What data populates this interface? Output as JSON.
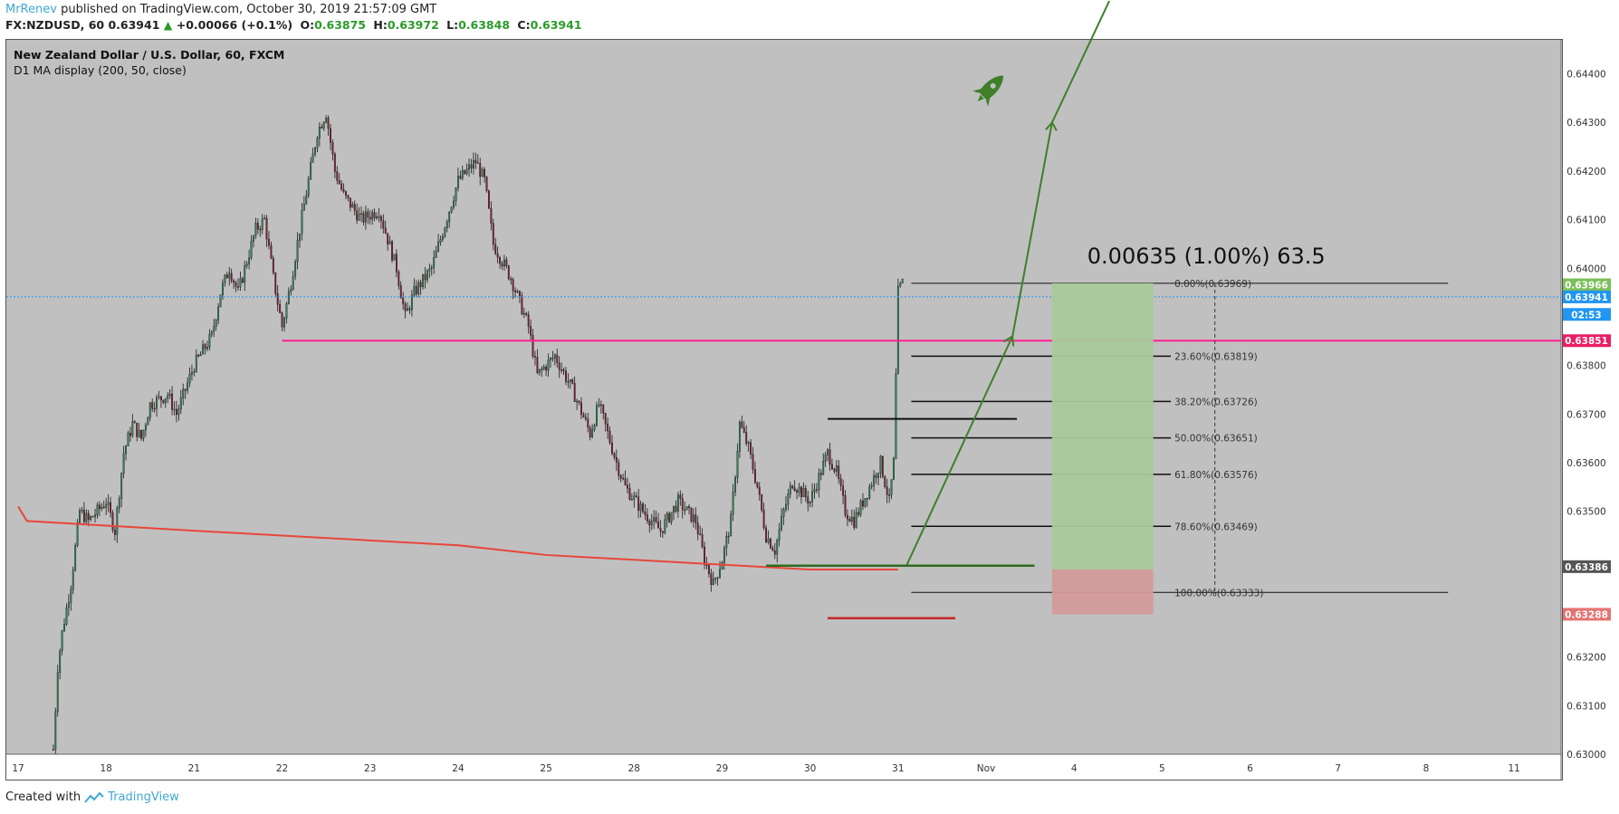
{
  "header": {
    "author": "MrRenev",
    "published": "published on TradingView.com, October 30, 2019 21:57:09 GMT",
    "symbol": "FX:NZDUSD, 60",
    "last": "0.63941",
    "change": "+0.00066 (+0.1%)",
    "o_label": "O:",
    "o": "0.63875",
    "h_label": "H:",
    "h": "0.63972",
    "l_label": "L:",
    "l": "0.63848",
    "c_label": "C:",
    "c": "0.63941"
  },
  "legend": {
    "title": "New Zealand Dollar / U.S. Dollar, 60, FXCM",
    "indicator": "D1 MA display (200, 50, close)"
  },
  "footer": {
    "created": "Created with",
    "brand": "TradingView"
  },
  "colors": {
    "background": "#c0c0c0",
    "up": "#2e8b57",
    "down": "#8b1a3a",
    "support": "#ff1f8f",
    "ma": "#e8463a",
    "arrow": "#3f7f2a",
    "tp_zone": "#a8c99a",
    "sl_zone": "#d49a9a"
  },
  "chart_data": {
    "type": "candlestick",
    "title": "New Zealand Dollar / U.S. Dollar, 60, FXCM",
    "ylim": [
      0.63,
      0.6447
    ],
    "y_ticks": [
      "0.64400",
      "0.64300",
      "0.64200",
      "0.64100",
      "0.64000",
      "0.63800",
      "0.63700",
      "0.63600",
      "0.63500",
      "0.63200",
      "0.63100",
      "0.63000"
    ],
    "x_ticks": [
      "17",
      "18",
      "21",
      "22",
      "23",
      "24",
      "25",
      "28",
      "29",
      "30",
      "31",
      "Nov",
      "4",
      "5",
      "6",
      "7",
      "8",
      "11"
    ],
    "x_range_bars": [
      0,
      348
    ],
    "close_path": [
      [
        8,
        0.6301
      ],
      [
        9,
        0.6318
      ],
      [
        10,
        0.6325
      ],
      [
        12,
        0.6335
      ],
      [
        14,
        0.635
      ],
      [
        16,
        0.6348
      ],
      [
        20,
        0.6352
      ],
      [
        22,
        0.6346
      ],
      [
        24,
        0.6362
      ],
      [
        26,
        0.6368
      ],
      [
        28,
        0.6365
      ],
      [
        30,
        0.6372
      ],
      [
        34,
        0.6374
      ],
      [
        36,
        0.637
      ],
      [
        40,
        0.638
      ],
      [
        44,
        0.6386
      ],
      [
        46,
        0.6395
      ],
      [
        48,
        0.64
      ],
      [
        50,
        0.6395
      ],
      [
        54,
        0.6408
      ],
      [
        56,
        0.641
      ],
      [
        58,
        0.6398
      ],
      [
        60,
        0.6388
      ],
      [
        62,
        0.6397
      ],
      [
        64,
        0.6408
      ],
      [
        66,
        0.6418
      ],
      [
        68,
        0.6428
      ],
      [
        70,
        0.6432
      ],
      [
        72,
        0.642
      ],
      [
        74,
        0.6415
      ],
      [
        78,
        0.641
      ],
      [
        82,
        0.6412
      ],
      [
        86,
        0.64
      ],
      [
        88,
        0.639
      ],
      [
        90,
        0.6395
      ],
      [
        94,
        0.64
      ],
      [
        98,
        0.6412
      ],
      [
        100,
        0.6418
      ],
      [
        104,
        0.6422
      ],
      [
        106,
        0.6418
      ],
      [
        108,
        0.6405
      ],
      [
        112,
        0.6398
      ],
      [
        116,
        0.6388
      ],
      [
        118,
        0.6378
      ],
      [
        122,
        0.6382
      ],
      [
        126,
        0.6375
      ],
      [
        130,
        0.6366
      ],
      [
        132,
        0.6372
      ],
      [
        136,
        0.636
      ],
      [
        138,
        0.6355
      ],
      [
        142,
        0.635
      ],
      [
        146,
        0.6346
      ],
      [
        150,
        0.6352
      ],
      [
        154,
        0.6348
      ],
      [
        156,
        0.634
      ],
      [
        158,
        0.6335
      ],
      [
        160,
        0.634
      ],
      [
        162,
        0.6348
      ],
      [
        164,
        0.6368
      ],
      [
        166,
        0.6363
      ],
      [
        168,
        0.6355
      ],
      [
        170,
        0.6345
      ],
      [
        172,
        0.6342
      ],
      [
        174,
        0.635
      ],
      [
        176,
        0.6356
      ],
      [
        180,
        0.6352
      ],
      [
        184,
        0.6362
      ],
      [
        186,
        0.6358
      ],
      [
        188,
        0.635
      ],
      [
        190,
        0.6348
      ],
      [
        194,
        0.6356
      ],
      [
        196,
        0.636
      ],
      [
        198,
        0.6352
      ],
      [
        199,
        0.636
      ],
      [
        200,
        0.6395
      ],
      [
        201,
        0.6397
      ]
    ],
    "current_price": "0.63941",
    "price_labels": [
      {
        "value": "0.63966",
        "color": "#7cbf5a"
      },
      {
        "value": "0.63941",
        "color": "#2196f3"
      },
      {
        "value": "02:53",
        "color": "#2196f3",
        "at": 0.63905
      },
      {
        "value": "0.63851",
        "color": "#e91e63"
      },
      {
        "value": "0.63386",
        "color": "#555555"
      },
      {
        "value": "0.63288",
        "color": "#e57373"
      }
    ],
    "fib_levels": [
      {
        "label": "0.00%(0.63969)",
        "value": 0.63969
      },
      {
        "label": "23.60%(0.63819)",
        "value": 0.63819
      },
      {
        "label": "38.20%(0.63726)",
        "value": 0.63726
      },
      {
        "label": "50.00%(0.63651)",
        "value": 0.63651
      },
      {
        "label": "61.80%(0.63576)",
        "value": 0.63576
      },
      {
        "label": "78.60%(0.63469)",
        "value": 0.63469
      },
      {
        "label": "100.00%(0.63333)",
        "value": 0.63333
      }
    ],
    "measure_text": "0.00635 (1.00%) 63.5",
    "support_level": 0.63851,
    "ma_line": [
      [
        0,
        0.6351
      ],
      [
        2,
        0.6348
      ],
      [
        40,
        0.6346
      ],
      [
        60,
        0.6345
      ],
      [
        80,
        0.6344
      ],
      [
        100,
        0.6343
      ],
      [
        120,
        0.6341
      ],
      [
        140,
        0.634
      ],
      [
        160,
        0.6339
      ],
      [
        180,
        0.6338
      ],
      [
        200,
        0.6338
      ]
    ]
  }
}
